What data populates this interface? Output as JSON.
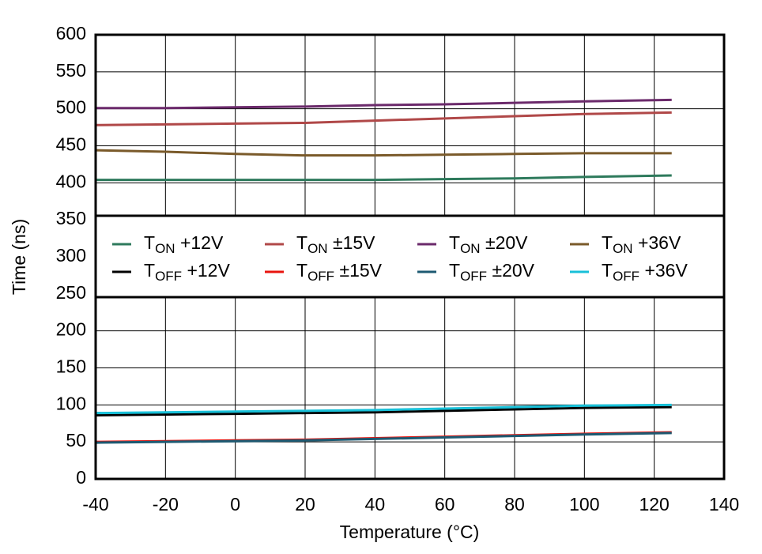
{
  "chart_data": {
    "type": "line",
    "x_label": "Temperature (°C)",
    "y_label": "Time (ns)",
    "x": [
      -40,
      -20,
      0,
      20,
      40,
      60,
      80,
      100,
      125
    ],
    "xlim": [
      -40,
      140
    ],
    "xticks": [
      -40,
      -20,
      0,
      20,
      40,
      60,
      80,
      100,
      120,
      140
    ],
    "ylim": [
      0,
      600
    ],
    "yticks": [
      0,
      50,
      100,
      150,
      200,
      250,
      300,
      350,
      400,
      450,
      500,
      550,
      600
    ],
    "grid": true,
    "legend": "center",
    "series": [
      {
        "name": "TON +12V",
        "color": "#2e7a5c",
        "values": [
          404,
          404,
          404,
          404,
          404,
          405,
          406,
          408,
          410
        ]
      },
      {
        "name": "TON ±15V",
        "color": "#b04848",
        "values": [
          478,
          479,
          480,
          481,
          484,
          487,
          490,
          493,
          495
        ]
      },
      {
        "name": "TON ±20V",
        "color": "#6b2a6b",
        "values": [
          501,
          501,
          502,
          503,
          505,
          506,
          508,
          510,
          512
        ]
      },
      {
        "name": "TON +36V",
        "color": "#7a5a2a",
        "values": [
          444,
          442,
          439,
          437,
          437,
          438,
          439,
          440,
          440
        ]
      },
      {
        "name": "TOFF +12V",
        "color": "#000000",
        "values": [
          86,
          87,
          88,
          89,
          90,
          92,
          94,
          96,
          97
        ]
      },
      {
        "name": "TOFF ±15V",
        "color": "#e8140e",
        "values": [
          50,
          51,
          52,
          53,
          55,
          57,
          59,
          61,
          63
        ]
      },
      {
        "name": "TOFF ±20V",
        "color": "#1d5a72",
        "values": [
          49,
          50,
          51,
          52,
          54,
          56,
          58,
          60,
          62
        ]
      },
      {
        "name": "TOFF +36V",
        "color": "#18c0d8",
        "values": [
          89,
          90,
          91,
          92,
          93,
          95,
          97,
          99,
          100
        ]
      }
    ]
  }
}
